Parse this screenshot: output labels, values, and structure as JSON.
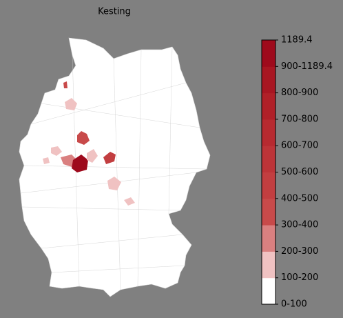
{
  "title": "Kesting",
  "colorbar": {
    "labels": [
      "0-100",
      "100-200",
      "200-300",
      "300-400",
      "400-500",
      "500-600",
      "600-700",
      "700-800",
      "800-900",
      "900-1189.4",
      "1189.4"
    ],
    "colors": [
      "#ffffff",
      "#f0c2c2",
      "#da8080",
      "#c84a4a",
      "#c23e40",
      "#bd3438",
      "#b72a30",
      "#b02028",
      "#a81622",
      "#9e0a1c"
    ]
  }
}
